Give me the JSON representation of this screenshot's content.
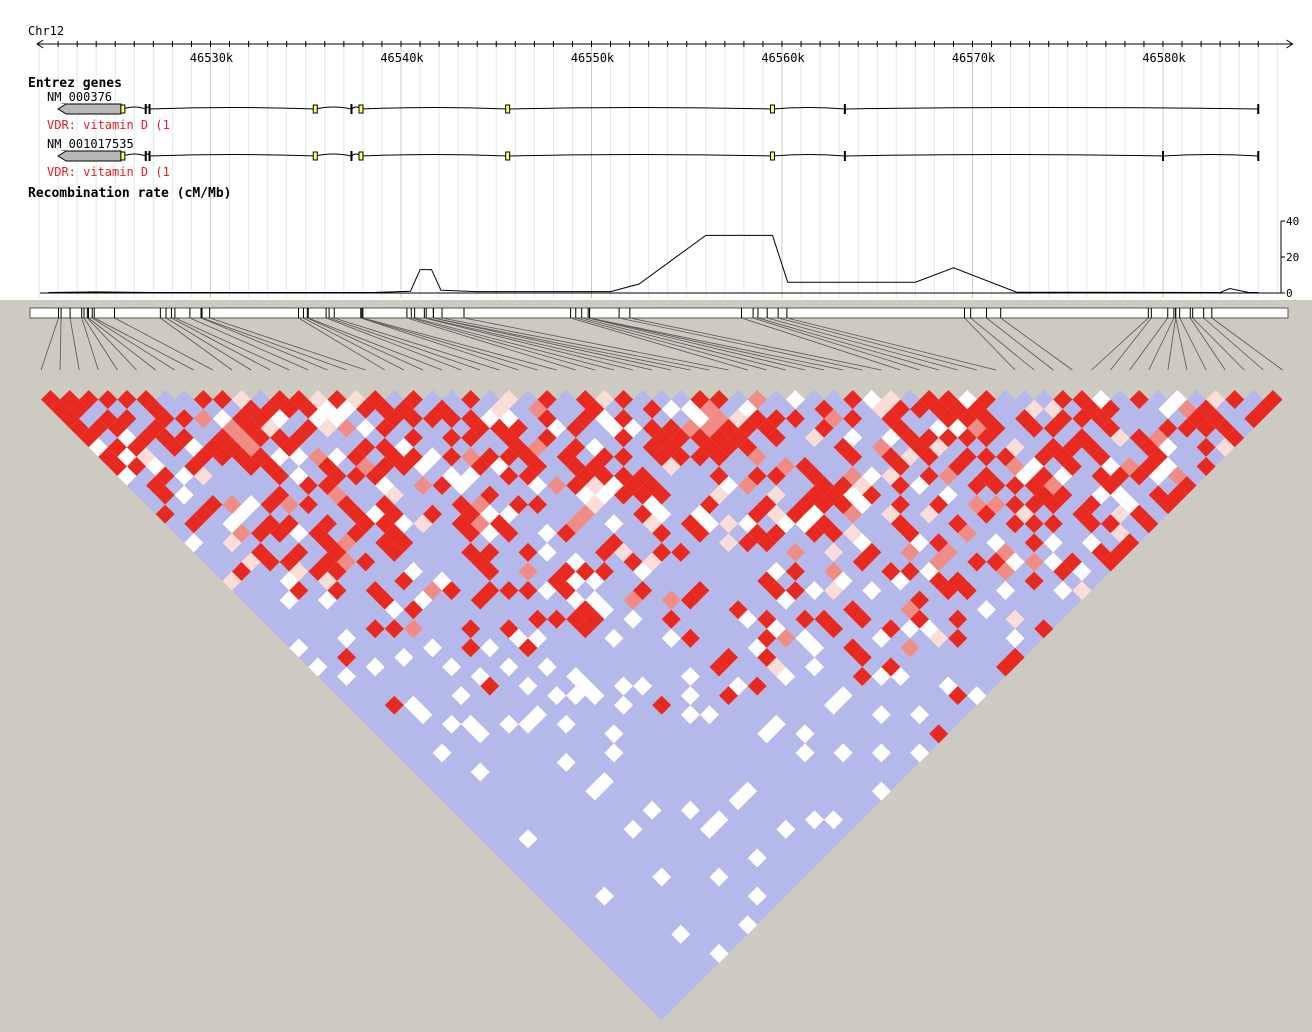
{
  "chromosome": "Chr12",
  "genome_axis": {
    "range_kb": [
      46520.9,
      46586.8
    ],
    "tick_labels": [
      "46530k",
      "46540k",
      "46550k",
      "46560k",
      "46570k",
      "46580k"
    ],
    "tick_values_kb": [
      46530,
      46540,
      46550,
      46560,
      46570,
      46580
    ]
  },
  "genes_track": {
    "title": "Entrez genes",
    "transcripts": [
      {
        "accession": "NM_000376",
        "description": "VDR: vitamin D (1",
        "strand": "-",
        "start_kb": 46522.0,
        "end_kb": 46585.0,
        "utr_kb": [
          46522.0,
          46525.3
        ],
        "exons_kb": [
          46525.4,
          46526.6,
          46526.8,
          46535.5,
          46537.4,
          46537.9,
          46545.6,
          46559.5,
          46563.3,
          46585.0
        ],
        "coding_exons_kb": [
          46525.4,
          46535.5,
          46537.9,
          46545.6,
          46559.5
        ]
      },
      {
        "accession": "NM_001017535",
        "description": "VDR: vitamin D (1",
        "strand": "-",
        "start_kb": 46522.0,
        "end_kb": 46585.0,
        "utr_kb": [
          46522.0,
          46525.3
        ],
        "exons_kb": [
          46525.4,
          46526.6,
          46526.8,
          46535.5,
          46537.4,
          46537.9,
          46545.6,
          46559.5,
          46563.3,
          46580.0,
          46585.0
        ],
        "coding_exons_kb": [
          46525.4,
          46535.5,
          46537.9,
          46545.6,
          46559.5
        ]
      }
    ]
  },
  "recombination_track": {
    "title": "Recombination rate (cM/Mb)",
    "y_ticks": [
      "40",
      "20",
      "0"
    ],
    "y_range": [
      0,
      40
    ],
    "points_kb_rate": [
      [
        46521.5,
        0.3
      ],
      [
        46524.0,
        0.6
      ],
      [
        46527.0,
        0.3
      ],
      [
        46538.5,
        0.3
      ],
      [
        46540.5,
        1.0
      ],
      [
        46541.0,
        13.0
      ],
      [
        46541.6,
        13.0
      ],
      [
        46542.1,
        1.5
      ],
      [
        46544.0,
        0.8
      ],
      [
        46551.0,
        0.8
      ],
      [
        46552.5,
        5.0
      ],
      [
        46556.0,
        32.0
      ],
      [
        46559.5,
        32.0
      ],
      [
        46560.3,
        6.0
      ],
      [
        46567.0,
        6.0
      ],
      [
        46569.0,
        14.0
      ],
      [
        46572.3,
        0.5
      ],
      [
        46583.0,
        0.3
      ],
      [
        46583.5,
        2.5
      ],
      [
        46584.5,
        0.3
      ],
      [
        46585.0,
        0.3
      ]
    ]
  },
  "ld_plot": {
    "marker_count": 66,
    "colors": {
      "high": "#e8291f",
      "mid": "#f08c86",
      "low": "#fadcd8",
      "blue": "#b4b8ea",
      "none": "#ffffff"
    }
  },
  "colors": {
    "panel_bg": "#ffffff",
    "page_bg": "#cdcac2",
    "exon": "#ffff66",
    "utr": "#b8b8b8",
    "label_red": "#e02020",
    "grid": "#bfbfbf"
  }
}
